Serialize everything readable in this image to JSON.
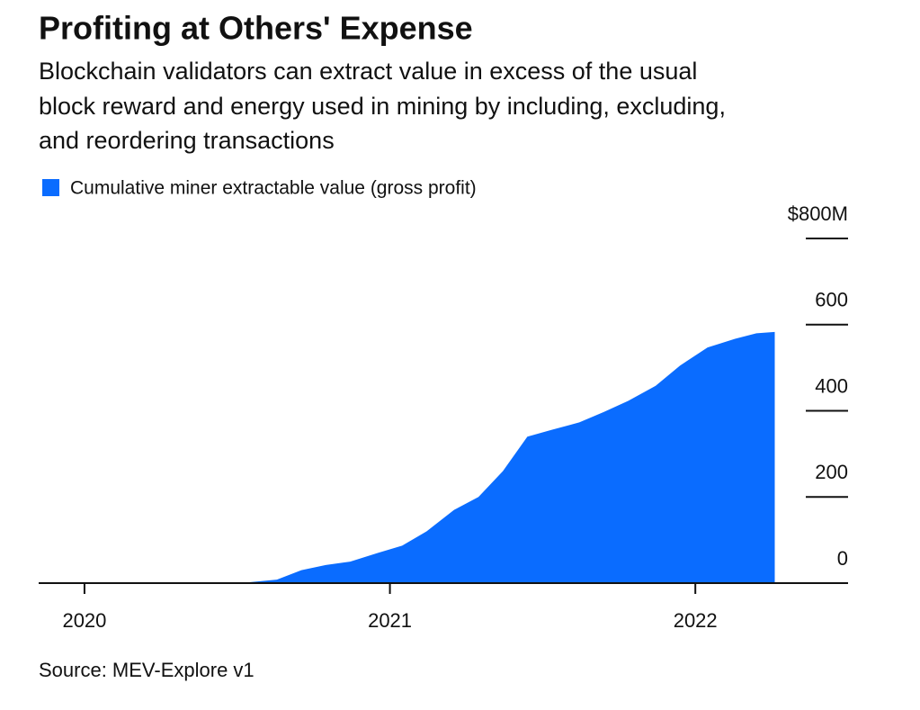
{
  "chart_data": {
    "type": "area",
    "title": "Profiting at Others' Expense",
    "subtitle": [
      "Blockchain validators can extract value in excess of the usual",
      "block reward and energy used in mining by including, excluding,",
      "and reordering transactions"
    ],
    "source": "Source: MEV-Explore v1",
    "x": [
      2019.85,
      2020.15,
      2020.21,
      2020.54,
      2020.63,
      2020.71,
      2020.79,
      2020.87,
      2020.96,
      2021.04,
      2021.12,
      2021.21,
      2021.29,
      2021.37,
      2021.45,
      2021.53,
      2021.62,
      2021.7,
      2021.78,
      2021.87,
      2021.95,
      2022.04,
      2022.13,
      2022.2,
      2022.26
    ],
    "series": [
      {
        "name": "Cumulative miner extractable value (gross profit)",
        "color": "#0a6cff",
        "values": [
          0,
          0,
          1,
          2,
          8,
          30,
          42,
          50,
          70,
          87,
          120,
          170,
          200,
          260,
          340,
          356,
          373,
          397,
          423,
          458,
          505,
          547,
          567,
          580,
          583
        ]
      }
    ],
    "xlim": [
      2019.85,
      2022.5
    ],
    "xticks": [
      2020,
      2021,
      2022
    ],
    "ylim": [
      0,
      800
    ],
    "yticks": [
      0,
      200,
      400,
      600,
      {
        "value": 800,
        "label": "$800M"
      }
    ]
  }
}
